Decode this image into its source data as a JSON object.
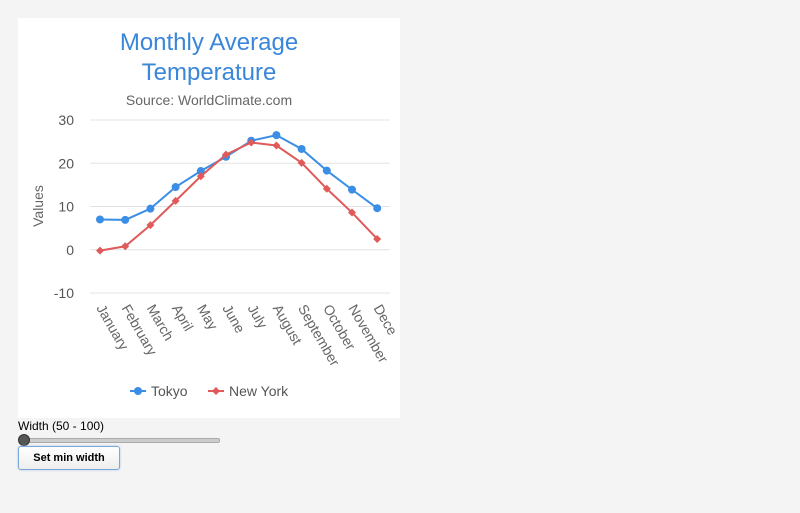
{
  "chart_data": {
    "type": "line",
    "title": "Monthly Average Temperature",
    "title_lines": [
      "Monthly Average",
      "Temperature"
    ],
    "subtitle": "Source: WorldClimate.com",
    "ylabel": "Values",
    "xlabel": "",
    "ylim": [
      -10,
      30
    ],
    "yticks": [
      -10,
      0,
      10,
      20,
      30
    ],
    "categories": [
      "January",
      "February",
      "March",
      "April",
      "May",
      "June",
      "July",
      "August",
      "September",
      "October",
      "November",
      "December"
    ],
    "categories_visible": [
      "January",
      "February",
      "March",
      "April",
      "May",
      "June",
      "July",
      "August",
      "September",
      "October",
      "November",
      "Dece"
    ],
    "grid": true,
    "legend_position": "bottom-center",
    "series": [
      {
        "name": "Tokyo",
        "color": "#3a8ee6",
        "marker": "circle",
        "values": [
          7.0,
          6.9,
          9.5,
          14.5,
          18.2,
          21.5,
          25.2,
          26.5,
          23.3,
          18.3,
          13.9,
          9.6
        ]
      },
      {
        "name": "New York",
        "color": "#e05a5a",
        "marker": "diamond",
        "values": [
          -0.2,
          0.8,
          5.7,
          11.3,
          17.0,
          22.0,
          24.8,
          24.1,
          20.1,
          14.1,
          8.6,
          2.5
        ]
      }
    ]
  },
  "controls": {
    "width_label": "Width (50 - 100)",
    "slider_value": 50,
    "slider_min": 50,
    "slider_max": 100,
    "set_min_width_label": "Set min width"
  }
}
